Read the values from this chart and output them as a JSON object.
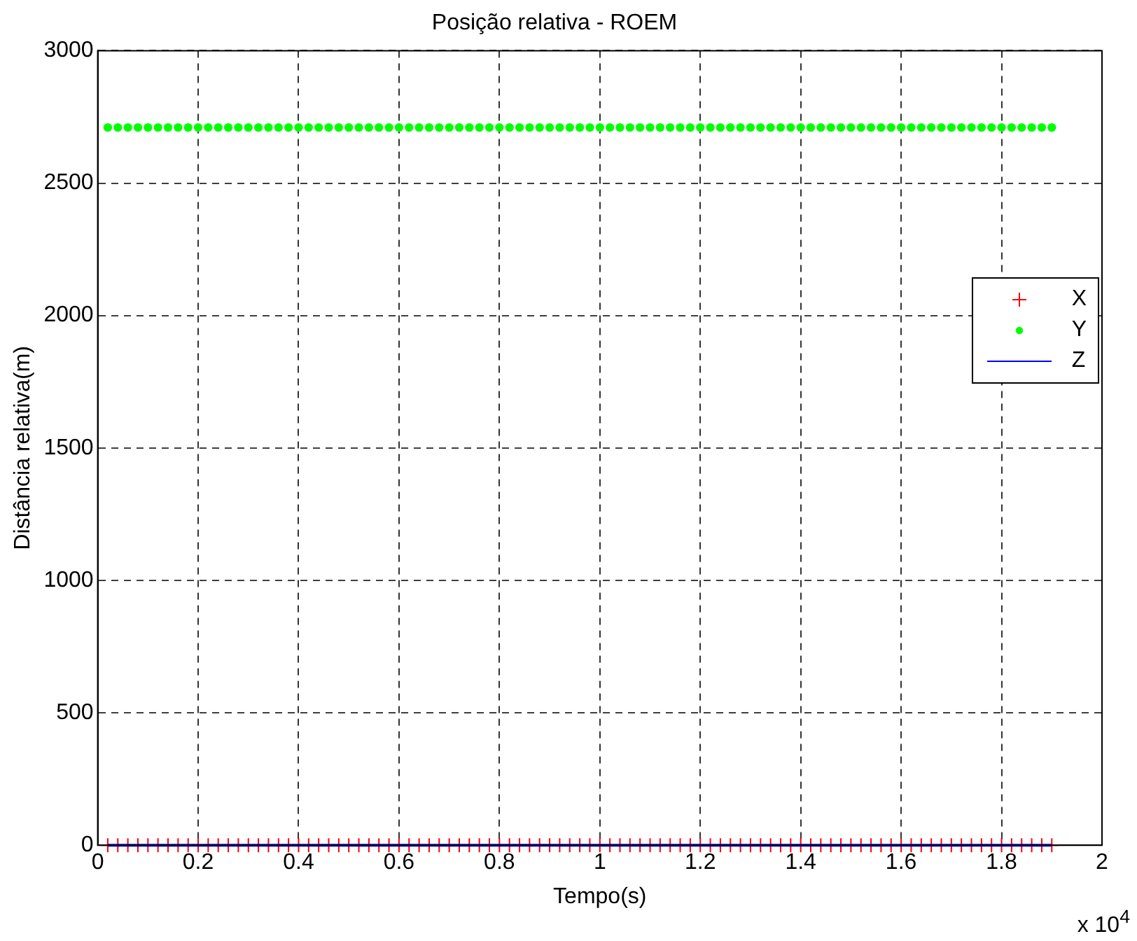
{
  "chart_data": {
    "type": "scatter",
    "title": "Posição relativa - ROEM",
    "xlabel": "Tempo(s)",
    "ylabel": "Distância relativa(m)",
    "x": [
      0.02,
      0.04,
      0.06,
      0.08,
      0.1,
      0.12,
      0.14,
      0.16,
      0.18,
      0.2,
      0.22,
      0.24,
      0.26,
      0.28,
      0.3,
      0.32,
      0.34,
      0.36,
      0.38,
      0.4,
      0.42,
      0.44,
      0.46,
      0.48,
      0.5,
      0.52,
      0.54,
      0.56,
      0.58,
      0.6,
      0.62,
      0.64,
      0.66,
      0.68,
      0.7,
      0.72,
      0.74,
      0.76,
      0.78,
      0.8,
      0.82,
      0.84,
      0.86,
      0.88,
      0.9,
      0.92,
      0.94,
      0.96,
      0.98,
      1,
      1.02,
      1.04,
      1.06,
      1.08,
      1.1,
      1.12,
      1.14,
      1.16,
      1.18,
      1.2,
      1.22,
      1.24,
      1.26,
      1.28,
      1.3,
      1.32,
      1.34,
      1.36,
      1.38,
      1.4,
      1.42,
      1.44,
      1.46,
      1.48,
      1.5,
      1.52,
      1.54,
      1.56,
      1.58,
      1.6,
      1.62,
      1.64,
      1.66,
      1.68,
      1.7,
      1.72,
      1.74,
      1.76,
      1.78,
      1.8,
      1.82,
      1.84,
      1.86,
      1.88,
      1.9
    ],
    "series": [
      {
        "name": "X",
        "color": "#ff0000",
        "marker": "cross",
        "values": [
          0,
          0,
          0,
          0,
          0,
          0,
          0,
          0,
          0,
          0,
          0,
          0,
          0,
          0,
          0,
          0,
          0,
          0,
          0,
          0,
          0,
          0,
          0,
          0,
          0,
          0,
          0,
          0,
          0,
          0,
          0,
          0,
          0,
          0,
          0,
          0,
          0,
          0,
          0,
          0,
          0,
          0,
          0,
          0,
          0,
          0,
          0,
          0,
          0,
          0,
          0,
          0,
          0,
          0,
          0,
          0,
          0,
          0,
          0,
          0,
          0,
          0,
          0,
          0,
          0,
          0,
          0,
          0,
          0,
          0,
          0,
          0,
          0,
          0,
          0,
          0,
          0,
          0,
          0,
          0,
          0,
          0,
          0,
          0,
          0,
          0,
          0,
          0,
          0,
          0,
          0,
          0,
          0,
          0,
          0
        ]
      },
      {
        "name": "Y",
        "color": "#00ff00",
        "marker": "circle",
        "values": [
          2710,
          2710,
          2710,
          2710,
          2710,
          2710,
          2710,
          2710,
          2710,
          2710,
          2710,
          2710,
          2710,
          2710,
          2710,
          2710,
          2710,
          2710,
          2710,
          2710,
          2710,
          2710,
          2710,
          2710,
          2710,
          2710,
          2710,
          2710,
          2710,
          2710,
          2710,
          2710,
          2710,
          2710,
          2710,
          2710,
          2710,
          2710,
          2710,
          2710,
          2710,
          2710,
          2710,
          2710,
          2710,
          2710,
          2710,
          2710,
          2710,
          2710,
          2710,
          2710,
          2710,
          2710,
          2710,
          2710,
          2710,
          2710,
          2710,
          2710,
          2710,
          2710,
          2710,
          2710,
          2710,
          2710,
          2710,
          2710,
          2710,
          2710,
          2710,
          2710,
          2710,
          2710,
          2710,
          2710,
          2710,
          2710,
          2710,
          2710,
          2710,
          2710,
          2710,
          2710,
          2710,
          2710,
          2710,
          2710,
          2710,
          2710,
          2710,
          2710,
          2710,
          2710,
          2710
        ]
      },
      {
        "name": "Z",
        "color": "#0000ff",
        "type": "line",
        "marker": "none",
        "values": [
          0,
          0,
          0,
          0,
          0,
          0,
          0,
          0,
          0,
          0,
          0,
          0,
          0,
          0,
          0,
          0,
          0,
          0,
          0,
          0,
          0,
          0,
          0,
          0,
          0,
          0,
          0,
          0,
          0,
          0,
          0,
          0,
          0,
          0,
          0,
          0,
          0,
          0,
          0,
          0,
          0,
          0,
          0,
          0,
          0,
          0,
          0,
          0,
          0,
          0,
          0,
          0,
          0,
          0,
          0,
          0,
          0,
          0,
          0,
          0,
          0,
          0,
          0,
          0,
          0,
          0,
          0,
          0,
          0,
          0,
          0,
          0,
          0,
          0,
          0,
          0,
          0,
          0,
          0,
          0,
          0,
          0,
          0,
          0,
          0,
          0,
          0,
          0,
          0,
          0,
          0,
          0,
          0,
          0,
          0
        ]
      }
    ],
    "xlim": [
      0,
      2
    ],
    "xticks": [
      0,
      0.2,
      0.4,
      0.6,
      0.8,
      1,
      1.2,
      1.4,
      1.6,
      1.8,
      2
    ],
    "ylim": [
      0,
      3000
    ],
    "yticks": [
      0,
      500,
      1000,
      1500,
      2000,
      2500,
      3000
    ],
    "grid": true,
    "legend": "right",
    "annotations": [
      "x 10$^{4}$"
    ]
  }
}
